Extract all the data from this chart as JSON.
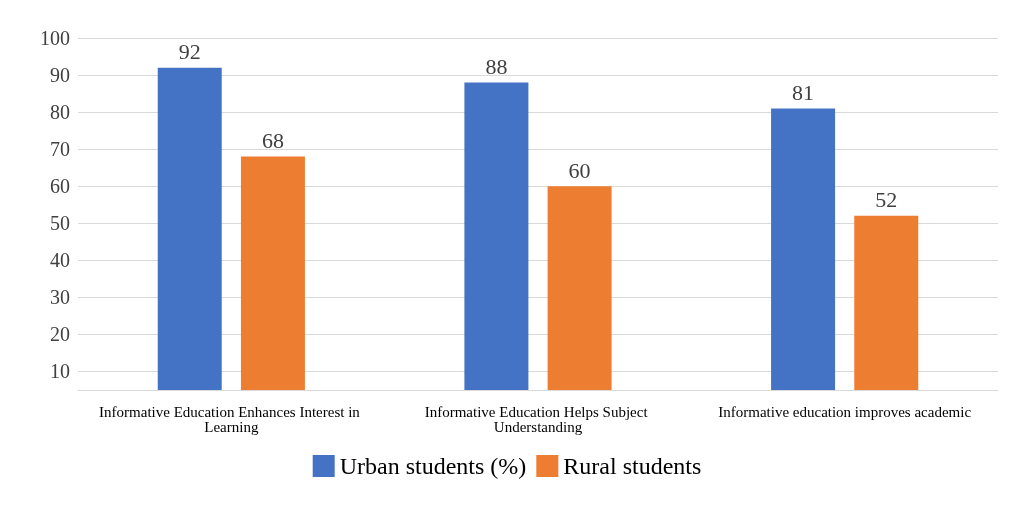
{
  "chart_data": {
    "type": "bar",
    "categories": [
      "Informative Education Enhances Interest in Learning",
      "Informative Education Helps Subject Understanding",
      "Informative education improves academic"
    ],
    "series": [
      {
        "name": "Urban students (%)",
        "color": "#4472c4",
        "values": [
          92,
          88,
          81
        ]
      },
      {
        "name": "Rural students",
        "color": "#ed7d31",
        "values": [
          68,
          60,
          52
        ]
      }
    ],
    "ylim": [
      5,
      100
    ],
    "yticks": [
      10,
      20,
      30,
      40,
      50,
      60,
      70,
      80,
      90,
      100
    ],
    "grid": "y",
    "legend": "bottom",
    "data_labels": true
  }
}
